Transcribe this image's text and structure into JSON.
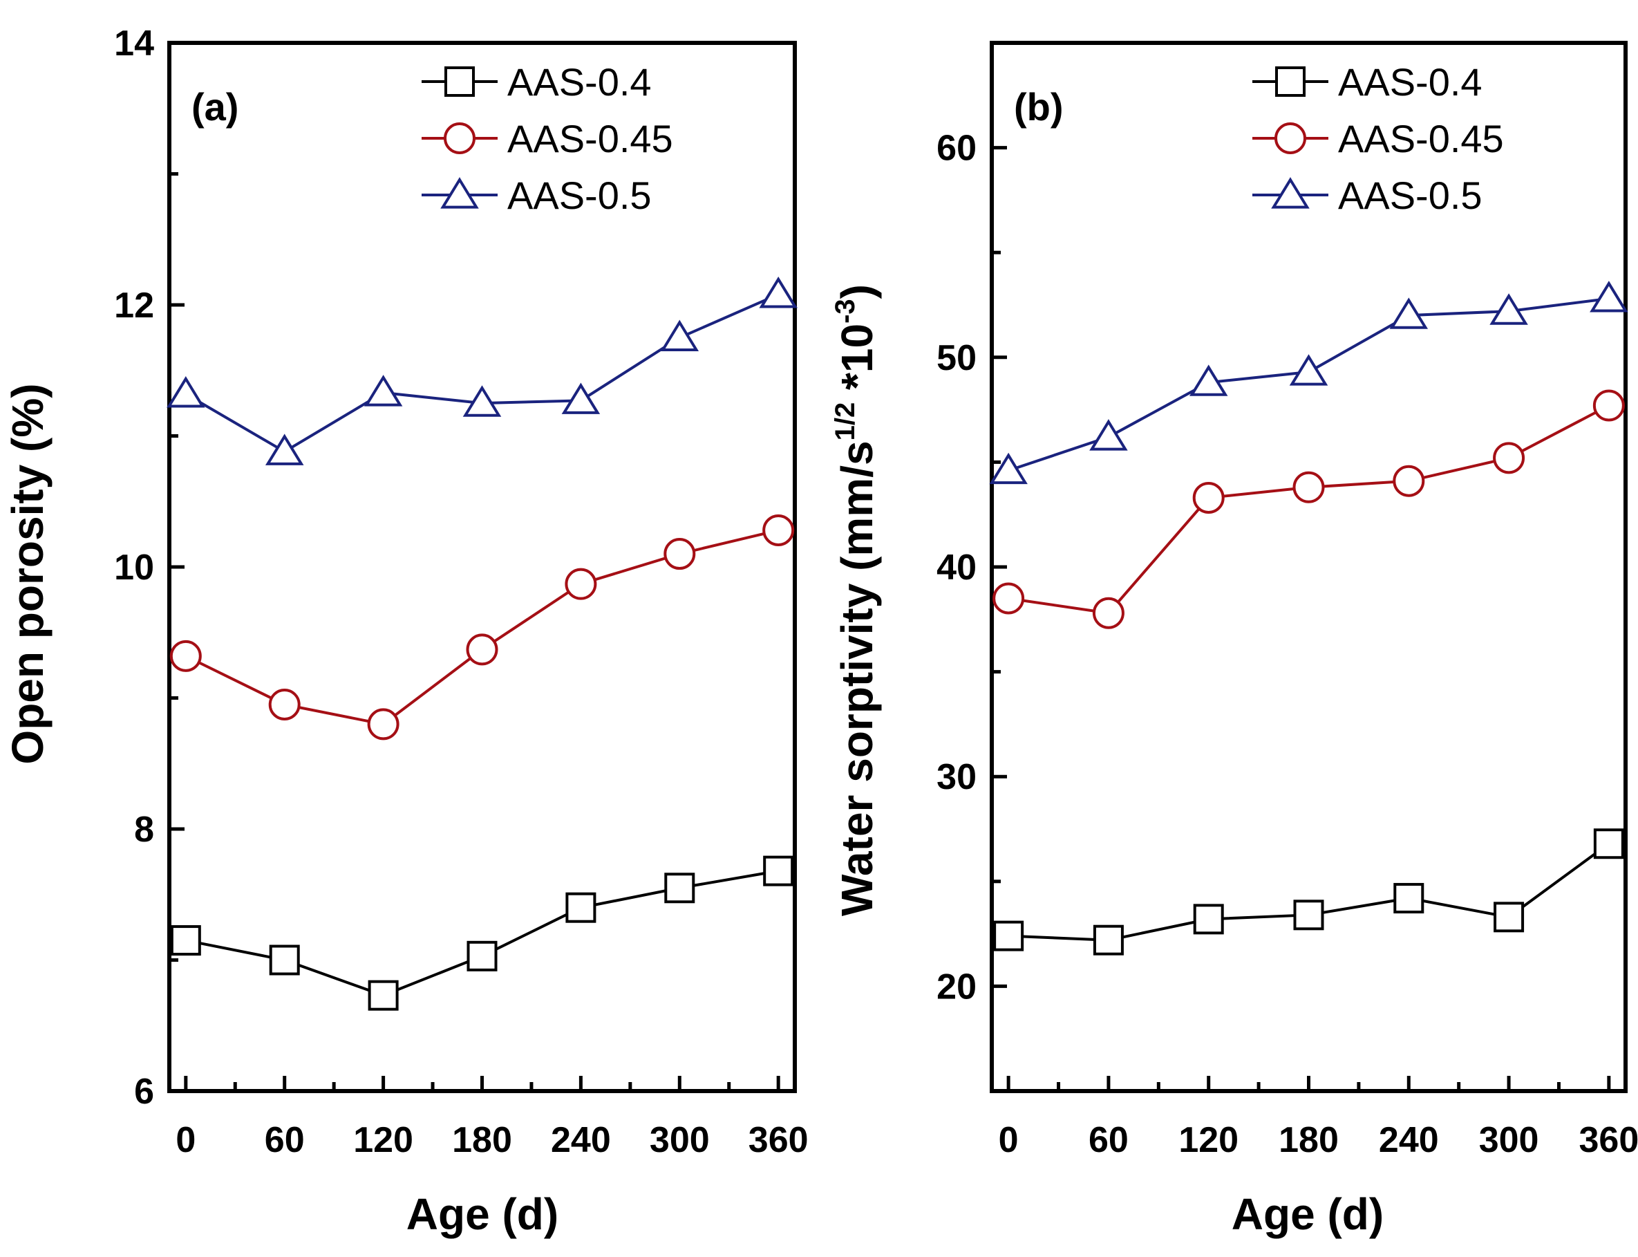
{
  "chart_data": [
    {
      "type": "line",
      "panel_label": "(a)",
      "title": "",
      "xlabel": "Age (d)",
      "ylabel": "Open porosity (%)",
      "xlim": [
        -10,
        370
      ],
      "ylim": [
        6,
        14
      ],
      "xticks": [
        0,
        60,
        120,
        180,
        240,
        300,
        360
      ],
      "yticks": [
        6,
        8,
        10,
        12,
        14
      ],
      "grid": false,
      "legend_position": "top-right",
      "x": [
        0,
        60,
        120,
        180,
        240,
        300,
        360
      ],
      "series": [
        {
          "name": "AAS-0.4",
          "marker": "square",
          "color": "#000000",
          "values": [
            7.15,
            7.0,
            6.73,
            7.03,
            7.4,
            7.55,
            7.68
          ]
        },
        {
          "name": "AAS-0.45",
          "marker": "circle",
          "color": "#a50f15",
          "values": [
            9.32,
            8.95,
            8.8,
            9.37,
            9.87,
            10.1,
            10.28
          ]
        },
        {
          "name": "AAS-0.5",
          "marker": "triangle",
          "color": "#1a237e",
          "values": [
            11.32,
            10.88,
            11.33,
            11.25,
            11.27,
            11.75,
            12.08
          ]
        }
      ]
    },
    {
      "type": "line",
      "panel_label": "(b)",
      "title": "",
      "xlabel": "Age (d)",
      "ylabel": "Water sorptivity (mm/s",
      "ylabel_sup1": "1/2",
      "ylabel_mid": " *10",
      "ylabel_sup2": "-3",
      "ylabel_end": ")",
      "xlim": [
        -10,
        370
      ],
      "ylim": [
        15,
        65
      ],
      "xticks": [
        0,
        60,
        120,
        180,
        240,
        300,
        360
      ],
      "yticks": [
        20,
        30,
        40,
        50,
        60
      ],
      "grid": false,
      "legend_position": "top-right",
      "x": [
        0,
        60,
        120,
        180,
        240,
        300,
        360
      ],
      "series": [
        {
          "name": "AAS-0.4",
          "marker": "square",
          "color": "#000000",
          "values": [
            22.4,
            22.2,
            23.2,
            23.4,
            24.2,
            23.3,
            26.8
          ]
        },
        {
          "name": "AAS-0.45",
          "marker": "circle",
          "color": "#a50f15",
          "values": [
            38.5,
            37.8,
            43.3,
            43.8,
            44.1,
            45.2,
            47.7
          ]
        },
        {
          "name": "AAS-0.5",
          "marker": "triangle",
          "color": "#1a237e",
          "values": [
            44.6,
            46.2,
            48.8,
            49.3,
            52.0,
            52.2,
            52.8
          ]
        }
      ]
    }
  ]
}
